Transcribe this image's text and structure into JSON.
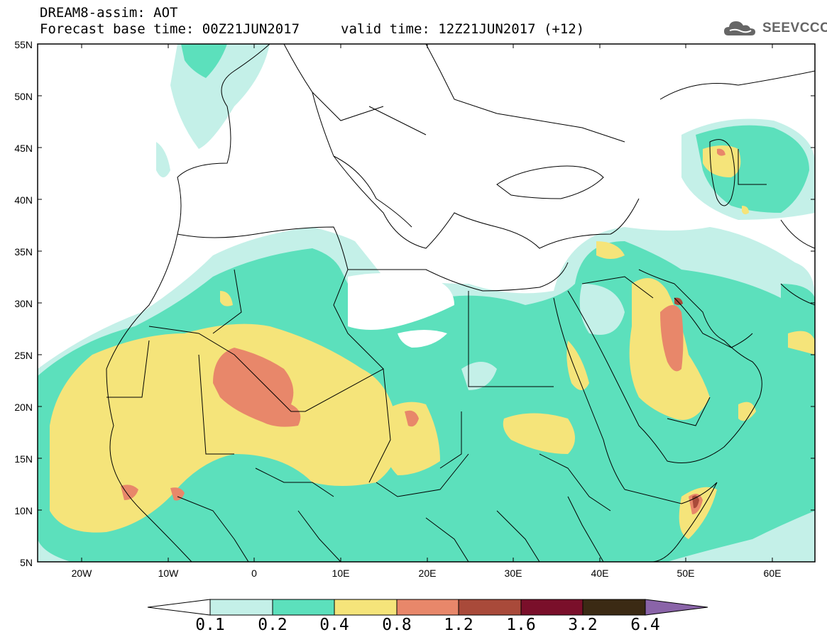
{
  "header": {
    "title": "DREAM8-assim: AOT",
    "base_time": "Forecast base time: 00Z21JUN2017",
    "valid_time": "valid time: 12Z21JUN2017 (+12)",
    "logo_text": "SEEVCCC"
  },
  "axes": {
    "lat_labels": [
      "55N",
      "50N",
      "45N",
      "40N",
      "35N",
      "30N",
      "25N",
      "20N",
      "15N",
      "10N",
      "5N"
    ],
    "lon_labels": [
      "20W",
      "10W",
      "0",
      "10E",
      "20E",
      "30E",
      "40E",
      "50E",
      "60E"
    ]
  },
  "colorbar": {
    "labels": [
      "0.1",
      "0.2",
      "0.4",
      "0.8",
      "1.2",
      "1.6",
      "3.2",
      "6.4"
    ],
    "colors": [
      "#c4f0e8",
      "#5ce0bc",
      "#f5e47a",
      "#e8876a",
      "#a94a3a",
      "#7a0f2a",
      "#3b2a14",
      "#8a64a8"
    ]
  },
  "icons": {
    "logo": "cloud-logo-icon"
  }
}
